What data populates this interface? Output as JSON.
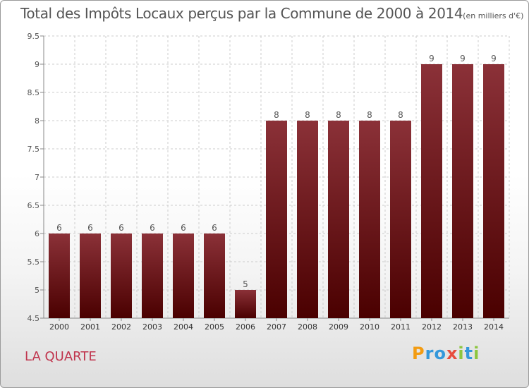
{
  "title": "Total des Impôts Locaux perçus par la Commune de 2000 à 2014",
  "unit": "(en milliers d'€)",
  "commune": "LA QUARTE",
  "logo": {
    "letters": [
      "P",
      "r",
      "o",
      "x",
      "i",
      "t",
      "i"
    ],
    "colors": [
      "#f39c12",
      "#3498db",
      "#3498db",
      "#e74c3c",
      "#8dc63f",
      "#3498db",
      "#8dc63f"
    ]
  },
  "colors": {
    "bar_top": "#8b3138",
    "bar_bottom": "#4a0000",
    "grid": "#cccccc",
    "axis_text": "#555555"
  },
  "chart_data": {
    "type": "bar",
    "categories": [
      "2000",
      "2001",
      "2002",
      "2003",
      "2004",
      "2005",
      "2006",
      "2007",
      "2008",
      "2009",
      "2010",
      "2011",
      "2012",
      "2013",
      "2014"
    ],
    "values": [
      6,
      6,
      6,
      6,
      6,
      6,
      5,
      8,
      8,
      8,
      8,
      8,
      9,
      9,
      9
    ],
    "data_labels": [
      "6",
      "6",
      "6",
      "6",
      "6",
      "6",
      "5",
      "8",
      "8",
      "8",
      "8",
      "8",
      "9",
      "9",
      "9"
    ],
    "title": "Total des Impôts Locaux perçus par la Commune de 2000 à 2014",
    "ylim": [
      4.5,
      9.5
    ],
    "yticks": [
      4.5,
      5,
      5.5,
      6,
      6.5,
      7,
      7.5,
      8,
      8.5,
      9,
      9.5
    ],
    "ytick_labels": [
      "4.5",
      "5",
      "5.5",
      "6",
      "6.5",
      "7",
      "7.5",
      "8",
      "8.5",
      "9",
      "9.5"
    ],
    "grid": true,
    "legend": "none"
  }
}
